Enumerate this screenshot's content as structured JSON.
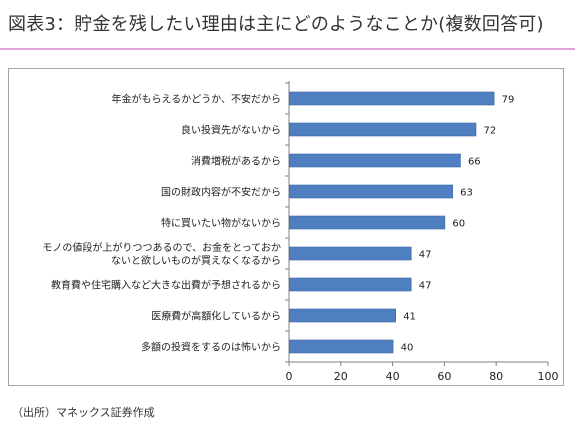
{
  "header": {
    "title": "図表3：貯金を残したい理由は主にどのようなことか(複数回答可)"
  },
  "footer": {
    "source": "（出所）マネックス証券作成"
  },
  "colors": {
    "bar": "#4f7fc1",
    "bar_edge": "#3a67a6",
    "accent_rule": "#e3a3d8",
    "frame": "#a6a6a6",
    "axis": "#808080"
  },
  "chart_data": {
    "type": "bar",
    "orientation": "horizontal",
    "categories": [
      "年金がもらえるかどうか、不安だから",
      "良い投資先がないから",
      "消費増税があるから",
      "国の財政内容が不安だから",
      "特に買いたい物がないから",
      "モノの値段が上がりつつあるので、お金をとっておか\nないと欲しいものが買えなくなるから",
      "教育費や住宅購入など大きな出費が予想されるから",
      "医療費が高額化しているから",
      "多額の投資をするのは怖いから"
    ],
    "values": [
      79,
      72,
      66,
      63,
      60,
      47,
      47,
      41,
      40
    ],
    "data_labels": [
      "79",
      "72",
      "66",
      "63",
      "60",
      "47",
      "47",
      "41",
      "40"
    ],
    "xlim": [
      0,
      100
    ],
    "xticks": [
      0,
      20,
      40,
      60,
      80,
      100
    ],
    "xtick_labels": [
      "0",
      "20",
      "40",
      "60",
      "80",
      "100"
    ],
    "grid": false,
    "legend": "none"
  }
}
